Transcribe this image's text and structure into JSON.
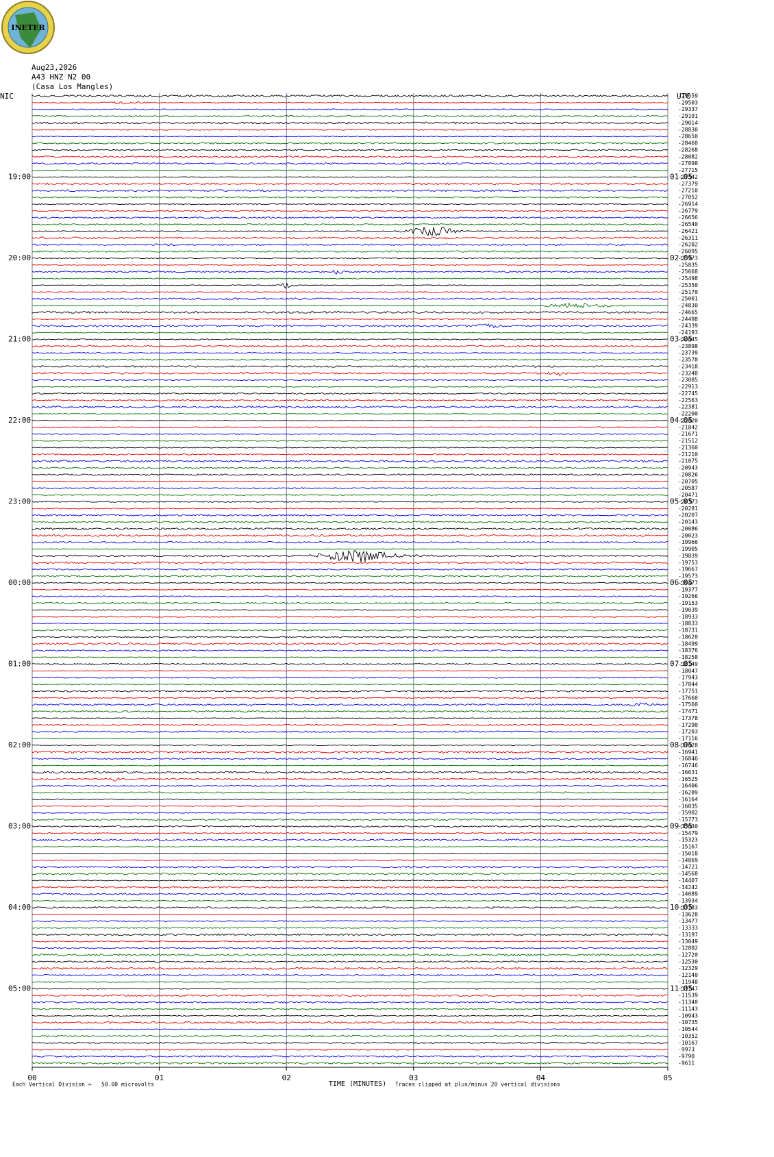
{
  "logo": "INETER",
  "header": {
    "date": "Aug23,2026",
    "station": "A43 HNZ N2 00",
    "site": "(Casa Los Mangles)"
  },
  "chart_data": {
    "type": "helicorder",
    "left_zone": "NIC",
    "right_zone": "UTC",
    "left_hours": [
      "19:00",
      "20:00",
      "21:00",
      "22:00",
      "23:00",
      "00:00",
      "01:00",
      "02:00",
      "03:00",
      "04:00",
      "05:00"
    ],
    "right_hours": [
      "01:05",
      "02:05",
      "03:05",
      "04:05",
      "05:05",
      "06:05",
      "07:05",
      "08:05",
      "09:05",
      "10:05",
      "11:05"
    ],
    "trace_labels": [
      -29659,
      -29503,
      -29337,
      -29191,
      -29014,
      -28830,
      -28650,
      -28460,
      -28268,
      -28082,
      -27898,
      -27715,
      -27542,
      -27379,
      -27210,
      -27052,
      -26914,
      -26779,
      -26656,
      -26540,
      -26421,
      -26311,
      -26202,
      -26095,
      -25973,
      -25835,
      -25668,
      -25498,
      -25350,
      -25170,
      -25001,
      -24830,
      -24665,
      -24498,
      -24339,
      -24193,
      -24045,
      -23898,
      -23739,
      -23578,
      -23418,
      -23248,
      -23085,
      -22913,
      -22745,
      -22563,
      -22381,
      -22200,
      -22020,
      -21842,
      -21671,
      -21512,
      -21360,
      -21210,
      -21075,
      -20943,
      -20826,
      -20705,
      -20587,
      -20471,
      -20373,
      -20281,
      -20207,
      -20143,
      -20086,
      -20023,
      -19966,
      -19905,
      -19839,
      -19753,
      -19667,
      -19573,
      -19477,
      -19377,
      -19266,
      -19153,
      -19039,
      -18933,
      -18833,
      -18731,
      -18620,
      -18499,
      -18376,
      -18258,
      -18149,
      -18047,
      -17943,
      -17844,
      -17751,
      -17660,
      -17560,
      -17471,
      -17378,
      -17290,
      -17203,
      -17116,
      -17028,
      -16941,
      -16846,
      -16746,
      -16631,
      -16525,
      -16406,
      -16289,
      -16164,
      -16035,
      -15902,
      -15773,
      -15630,
      -15479,
      -15323,
      -15167,
      -15018,
      -14869,
      -14721,
      -14568,
      -14407,
      -14242,
      -14089,
      -13934,
      -13783,
      -13628,
      -13477,
      -13333,
      -13197,
      -13049,
      -12892,
      -12720,
      -12530,
      -12329,
      -12140,
      -11948,
      -11747,
      -11539,
      -11340,
      -11143,
      -10943,
      -10735,
      -10544,
      -10352,
      -10167,
      -9973,
      -9790,
      -9611
    ],
    "colors": [
      "#000000",
      "#e00000",
      "#0000e0",
      "#007000"
    ],
    "xlim": [
      0,
      5
    ],
    "xticks": [
      {
        "value": 0,
        "label": "00"
      },
      {
        "value": 1,
        "label": "01"
      },
      {
        "value": 2,
        "label": "02"
      },
      {
        "value": 3,
        "label": "03"
      },
      {
        "value": 4,
        "label": "04"
      },
      {
        "value": 5,
        "label": "05"
      }
    ],
    "xlabel": "TIME (MINUTES)",
    "scale_note": "Each Vertical Division =   50.00 microvolts",
    "clip_note": "Traces clipped at plus/minus 20 vertical divisions"
  }
}
